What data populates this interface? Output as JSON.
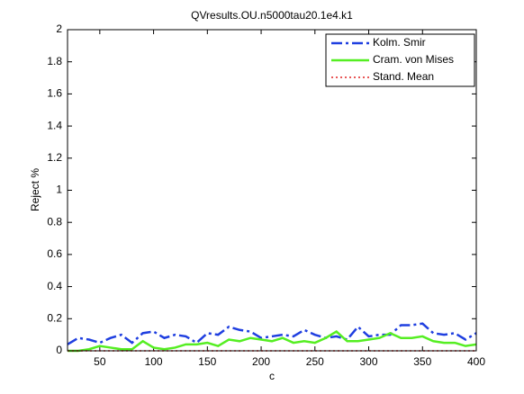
{
  "chart_data": {
    "type": "line",
    "title": "QVresults.OU.n5000tau20.1e4.k1",
    "xlabel": "c",
    "ylabel": "Reject %",
    "x": [
      20,
      30,
      40,
      50,
      60,
      70,
      80,
      90,
      100,
      110,
      120,
      130,
      140,
      150,
      160,
      170,
      180,
      190,
      200,
      210,
      220,
      230,
      240,
      250,
      260,
      270,
      280,
      290,
      300,
      310,
      320,
      330,
      340,
      350,
      360,
      370,
      380,
      390,
      400
    ],
    "series": [
      {
        "name": "Kolm. Smir",
        "color": "#1f3fe0",
        "style": "dashdot",
        "values": [
          0.04,
          0.08,
          0.07,
          0.05,
          0.08,
          0.1,
          0.05,
          0.11,
          0.12,
          0.08,
          0.1,
          0.09,
          0.05,
          0.11,
          0.1,
          0.15,
          0.13,
          0.12,
          0.08,
          0.09,
          0.1,
          0.09,
          0.13,
          0.1,
          0.08,
          0.09,
          0.07,
          0.15,
          0.09,
          0.1,
          0.1,
          0.16,
          0.16,
          0.17,
          0.11,
          0.1,
          0.11,
          0.07,
          0.11
        ]
      },
      {
        "name": "Cram. von Mises",
        "color": "#55ee22",
        "style": "solid",
        "values": [
          0,
          0,
          0.01,
          0.03,
          0.02,
          0.01,
          0.01,
          0.06,
          0.02,
          0.01,
          0.02,
          0.04,
          0.04,
          0.05,
          0.03,
          0.07,
          0.06,
          0.08,
          0.07,
          0.06,
          0.08,
          0.05,
          0.06,
          0.05,
          0.08,
          0.12,
          0.06,
          0.06,
          0.07,
          0.08,
          0.11,
          0.08,
          0.08,
          0.09,
          0.06,
          0.05,
          0.05,
          0.03,
          0.04
        ]
      },
      {
        "name": "Stand. Mean",
        "color": "#e02020",
        "style": "dotted",
        "values": [
          0,
          0,
          0,
          0,
          0,
          0,
          0,
          0,
          0,
          0,
          0,
          0,
          0,
          0,
          0,
          0,
          0,
          0,
          0,
          0,
          0,
          0,
          0,
          0,
          0,
          0,
          0,
          0,
          0,
          0,
          0,
          0,
          0,
          0,
          0,
          0,
          0,
          0,
          0
        ]
      }
    ],
    "xlim": [
      20,
      400
    ],
    "xticks": [
      50,
      100,
      150,
      200,
      250,
      300,
      350,
      400
    ],
    "ylim": [
      0,
      2
    ],
    "yticks": [
      0,
      0.2,
      0.4,
      0.6,
      0.8,
      1,
      1.2,
      1.4,
      1.6,
      1.8,
      2
    ],
    "legend": "northeast",
    "grid": false
  }
}
